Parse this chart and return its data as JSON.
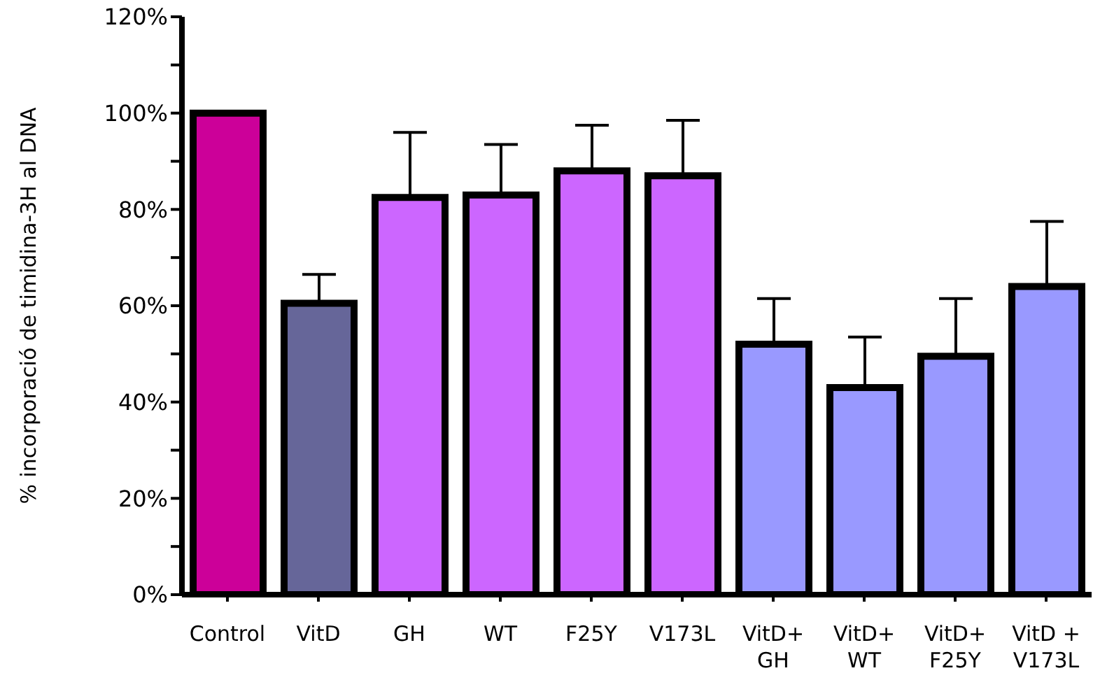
{
  "chart_data": {
    "type": "bar",
    "ylabel": "% incorporació de timidina-3H al DNA",
    "categories": [
      "Control",
      "VitD",
      "GH",
      "WT",
      "F25Y",
      "V173L",
      "VitD+ GH",
      "VitD+ WT",
      "VitD+ F25Y",
      "VitD + V173L"
    ],
    "values": [
      100,
      60.5,
      82.5,
      83,
      88,
      87,
      52,
      43,
      49.5,
      64
    ],
    "errors": [
      null,
      [
        60.5,
        66.5
      ],
      [
        82.5,
        96
      ],
      [
        83,
        93.5
      ],
      [
        88,
        97.5
      ],
      [
        87,
        98.5
      ],
      [
        52,
        61.5
      ],
      [
        43,
        53.5
      ],
      [
        49.5,
        61.5
      ],
      [
        64,
        77.5
      ]
    ],
    "colors": [
      "#cc0099",
      "#666699",
      "#cc66ff",
      "#cc66ff",
      "#cc66ff",
      "#cc66ff",
      "#9999ff",
      "#9999ff",
      "#9999ff",
      "#9999ff"
    ],
    "ylim": [
      0,
      120
    ],
    "yticks": [
      {
        "value": 0,
        "label": "0%"
      },
      {
        "value": 10,
        "label": null
      },
      {
        "value": 20,
        "label": "20%"
      },
      {
        "value": 30,
        "label": null
      },
      {
        "value": 40,
        "label": "40%"
      },
      {
        "value": 50,
        "label": null
      },
      {
        "value": 60,
        "label": "60%"
      },
      {
        "value": 70,
        "label": null
      },
      {
        "value": 80,
        "label": "80%"
      },
      {
        "value": 90,
        "label": null
      },
      {
        "value": 100,
        "label": "100%"
      },
      {
        "value": 110,
        "label": null
      },
      {
        "value": 120,
        "label": "120%"
      }
    ],
    "grid": false,
    "legend": false
  }
}
